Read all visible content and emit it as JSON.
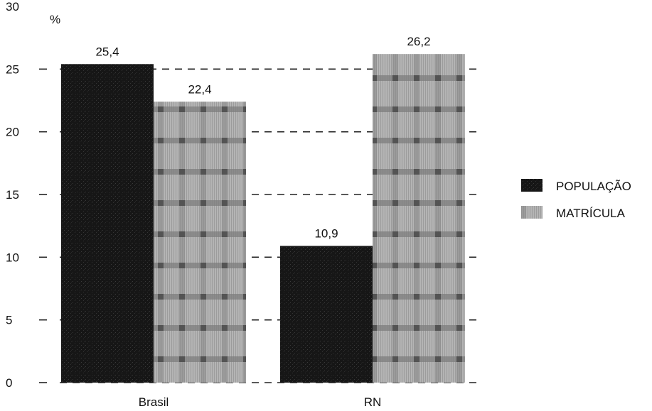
{
  "chart_data": {
    "type": "bar",
    "unit_label": "%",
    "categories": [
      "Brasil",
      "RN"
    ],
    "series": [
      {
        "name": "POPULAÇÃO",
        "values": [
          25.4,
          10.9
        ],
        "labels": [
          "25,4",
          "10,9"
        ],
        "color": "#141414",
        "pattern": "dark-stipple"
      },
      {
        "name": "MATRÍCULA",
        "values": [
          22.4,
          26.2
        ],
        "labels": [
          "22,4",
          "26,2"
        ],
        "color": "#9a9a9a",
        "pattern": "plaid"
      }
    ],
    "y_ticks": [
      "0",
      "5",
      "10",
      "15",
      "20",
      "25",
      "30"
    ],
    "ylim": [
      0,
      30
    ],
    "grid": "dashed horizontal",
    "legend_position": "right"
  }
}
